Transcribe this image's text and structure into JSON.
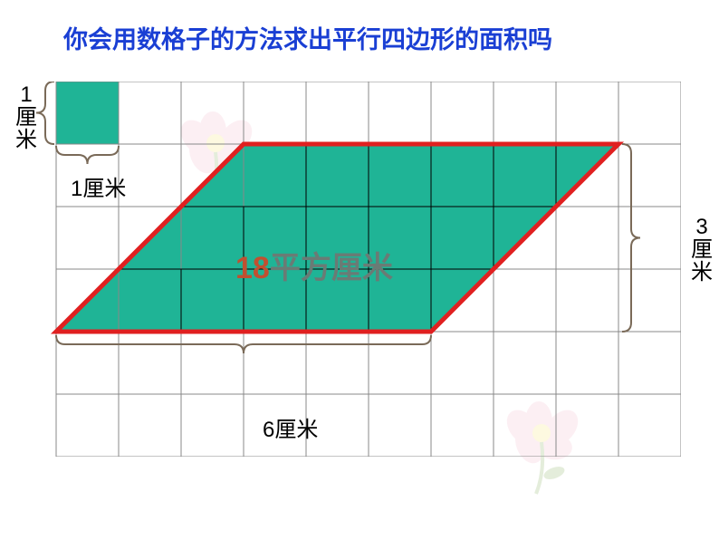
{
  "title": "你会用数格子的方法求出平行四边形的面积吗",
  "title_fontsize": 27,
  "title_color": "#1a3fd4",
  "grid": {
    "cols": 10,
    "rows": 6,
    "cell_size": 69,
    "x_offset": 0,
    "y_offset": 0,
    "line_color": "#888888",
    "line_width": 1,
    "background": "#ffffff"
  },
  "unit_square": {
    "col": 0,
    "row": 0,
    "fill": "#1fb496"
  },
  "unit_labels": {
    "vertical_text": "1厘米",
    "horizontal_text": "1厘米",
    "fontsize": 24
  },
  "parallelogram": {
    "bottom_left_col": 0,
    "bottom_row": 4,
    "top_left_col": 3,
    "top_row": 1,
    "base_cells": 6,
    "height_cells": 3,
    "fill": "#1fb496",
    "border_color": "#e02020",
    "border_width": 5,
    "inner_grid_color": "#000000",
    "inner_grid_width": 1
  },
  "area_label": {
    "value": "18",
    "unit": "平方厘米",
    "fontsize": 34,
    "value_color": "#c05030",
    "unit_color": "#6a7b75"
  },
  "dim_labels": {
    "base": "6厘米",
    "height": "3厘米",
    "fontsize": 24,
    "color": "#000000"
  },
  "brace_color": "#7a6a58",
  "flower": {
    "petal_color": "#f2a8c0",
    "center_color": "#f5e05a",
    "leaf_color": "#6fa040"
  }
}
